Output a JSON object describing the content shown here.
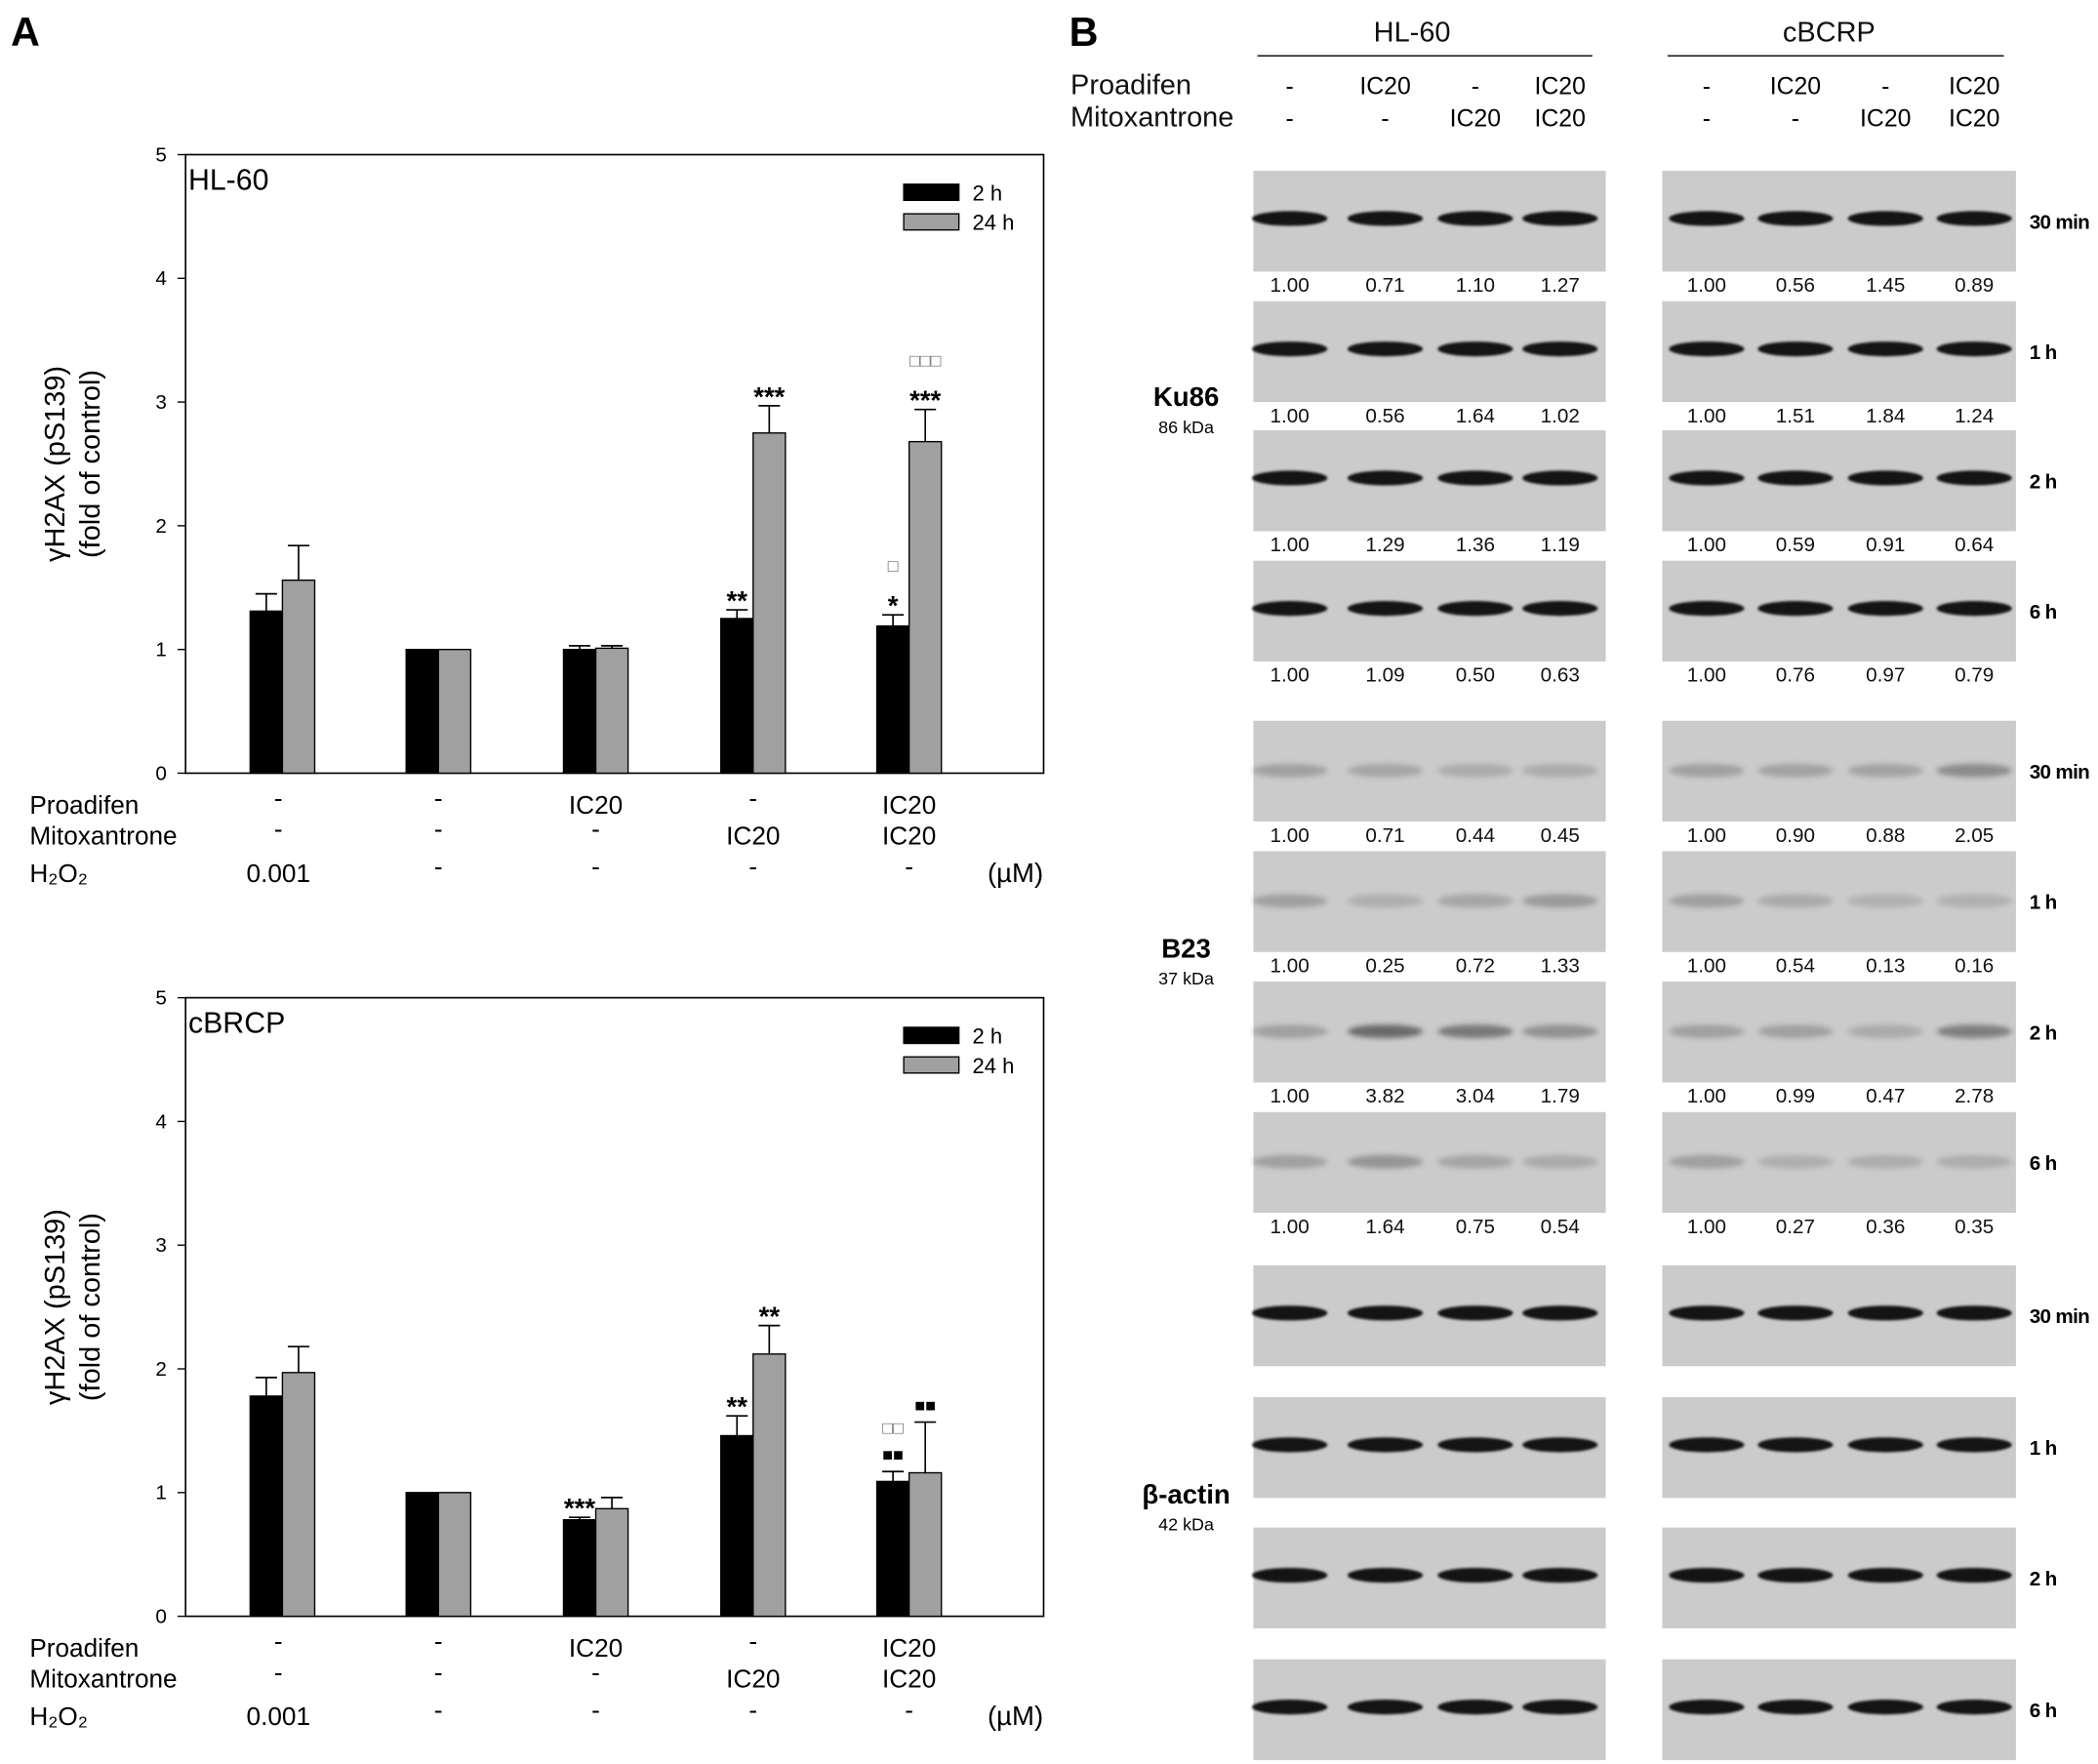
{
  "panels": {
    "a_label": "A",
    "b_label": "B"
  },
  "chart_data": [
    {
      "type": "bar",
      "title": "HL-60",
      "ylabel": [
        "γH2AX (pS139)",
        "(fold of control)"
      ],
      "ylim": [
        0,
        5
      ],
      "yticks": [
        "0",
        "1",
        "2",
        "3",
        "4",
        "5"
      ],
      "legend_position": "top-right",
      "categories": [
        {
          "Proadifen": "-",
          "Mitoxantrone": "-",
          "H₂O₂": "0.001"
        },
        {
          "Proadifen": "-",
          "Mitoxantrone": "-",
          "H₂O₂": "-"
        },
        {
          "Proadifen": "IC20",
          "Mitoxantrone": "-",
          "H₂O₂": "-"
        },
        {
          "Proadifen": "-",
          "Mitoxantrone": "IC20",
          "H₂O₂": "-"
        },
        {
          "Proadifen": "IC20",
          "Mitoxantrone": "IC20",
          "H₂O₂": "-"
        }
      ],
      "unit": "(µM)",
      "series": [
        {
          "name": "2 h",
          "color": "#000000",
          "values": [
            1.31,
            1.0,
            1.0,
            1.25,
            1.19
          ],
          "errors": [
            0.14,
            0,
            0.03,
            0.07,
            0.09
          ],
          "annotations": [
            [],
            [],
            [],
            [
              "**"
            ],
            [
              "*",
              "□"
            ]
          ]
        },
        {
          "name": "24 h",
          "color": "#a0a0a0",
          "values": [
            1.56,
            1.0,
            1.01,
            2.75,
            2.68
          ],
          "errors": [
            0.28,
            0,
            0.02,
            0.22,
            0.26
          ],
          "annotations": [
            [],
            [],
            [],
            [
              "***"
            ],
            [
              "***",
              "□□□"
            ]
          ]
        }
      ]
    },
    {
      "type": "bar",
      "title": "cBRCP",
      "ylabel": [
        "γH2AX (pS139)",
        "(fold of control)"
      ],
      "ylim": [
        0,
        5
      ],
      "yticks": [
        "0",
        "1",
        "2",
        "3",
        "4",
        "5"
      ],
      "legend_position": "top-right",
      "categories": [
        {
          "Proadifen": "-",
          "Mitoxantrone": "-",
          "H₂O₂": "0.001"
        },
        {
          "Proadifen": "-",
          "Mitoxantrone": "-",
          "H₂O₂": "-"
        },
        {
          "Proadifen": "IC20",
          "Mitoxantrone": "-",
          "H₂O₂": "-"
        },
        {
          "Proadifen": "-",
          "Mitoxantrone": "IC20",
          "H₂O₂": "-"
        },
        {
          "Proadifen": "IC20",
          "Mitoxantrone": "IC20",
          "H₂O₂": "-"
        }
      ],
      "unit": "(µM)",
      "series": [
        {
          "name": "2 h",
          "color": "#000000",
          "values": [
            1.78,
            1.0,
            0.78,
            1.46,
            1.09
          ],
          "errors": [
            0.15,
            0,
            0.02,
            0.16,
            0.08
          ],
          "annotations": [
            [],
            [],
            [
              "***"
            ],
            [
              "**"
            ],
            [
              "■■",
              "□□"
            ]
          ]
        },
        {
          "name": "24 h",
          "color": "#a0a0a0",
          "values": [
            1.97,
            1.0,
            0.87,
            2.12,
            1.16
          ],
          "errors": [
            0.21,
            0,
            0.09,
            0.23,
            0.41
          ],
          "annotations": [
            [],
            [],
            [],
            [
              "**"
            ],
            [
              "■■"
            ]
          ]
        }
      ]
    }
  ],
  "blots": {
    "cell_lines": [
      "HL-60",
      "cBCRP"
    ],
    "treatment_rows": [
      {
        "label": "Proadifen",
        "values": [
          "-",
          "IC20",
          "-",
          "IC20"
        ]
      },
      {
        "label": "Mitoxantrone",
        "values": [
          "-",
          "-",
          "IC20",
          "IC20"
        ]
      }
    ],
    "times": [
      "30 min",
      "1 h",
      "2 h",
      "6 h"
    ],
    "proteins": [
      {
        "name": "Ku86",
        "kda": "86 kDa",
        "style": "strong",
        "values": {
          "HL-60": [
            [
              "1.00",
              "0.71",
              "1.10",
              "1.27"
            ],
            [
              "1.00",
              "0.56",
              "1.64",
              "1.02"
            ],
            [
              "1.00",
              "1.29",
              "1.36",
              "1.19"
            ],
            [
              "1.00",
              "1.09",
              "0.50",
              "0.63"
            ]
          ],
          "cBCRP": [
            [
              "1.00",
              "0.56",
              "1.45",
              "0.89"
            ],
            [
              "1.00",
              "1.51",
              "1.84",
              "1.24"
            ],
            [
              "1.00",
              "0.59",
              "0.91",
              "0.64"
            ],
            [
              "1.00",
              "0.76",
              "0.97",
              "0.79"
            ]
          ]
        }
      },
      {
        "name": "B23",
        "kda": "37 kDa",
        "style": "faint",
        "values": {
          "HL-60": [
            [
              "1.00",
              "0.71",
              "0.44",
              "0.45"
            ],
            [
              "1.00",
              "0.25",
              "0.72",
              "1.33"
            ],
            [
              "1.00",
              "3.82",
              "3.04",
              "1.79"
            ],
            [
              "1.00",
              "1.64",
              "0.75",
              "0.54"
            ]
          ],
          "cBCRP": [
            [
              "1.00",
              "0.90",
              "0.88",
              "2.05"
            ],
            [
              "1.00",
              "0.54",
              "0.13",
              "0.16"
            ],
            [
              "1.00",
              "0.99",
              "0.47",
              "2.78"
            ],
            [
              "1.00",
              "0.27",
              "0.36",
              "0.35"
            ]
          ]
        }
      },
      {
        "name": "β-actin",
        "kda": "42 kDa",
        "style": "strong",
        "values": null
      }
    ]
  }
}
